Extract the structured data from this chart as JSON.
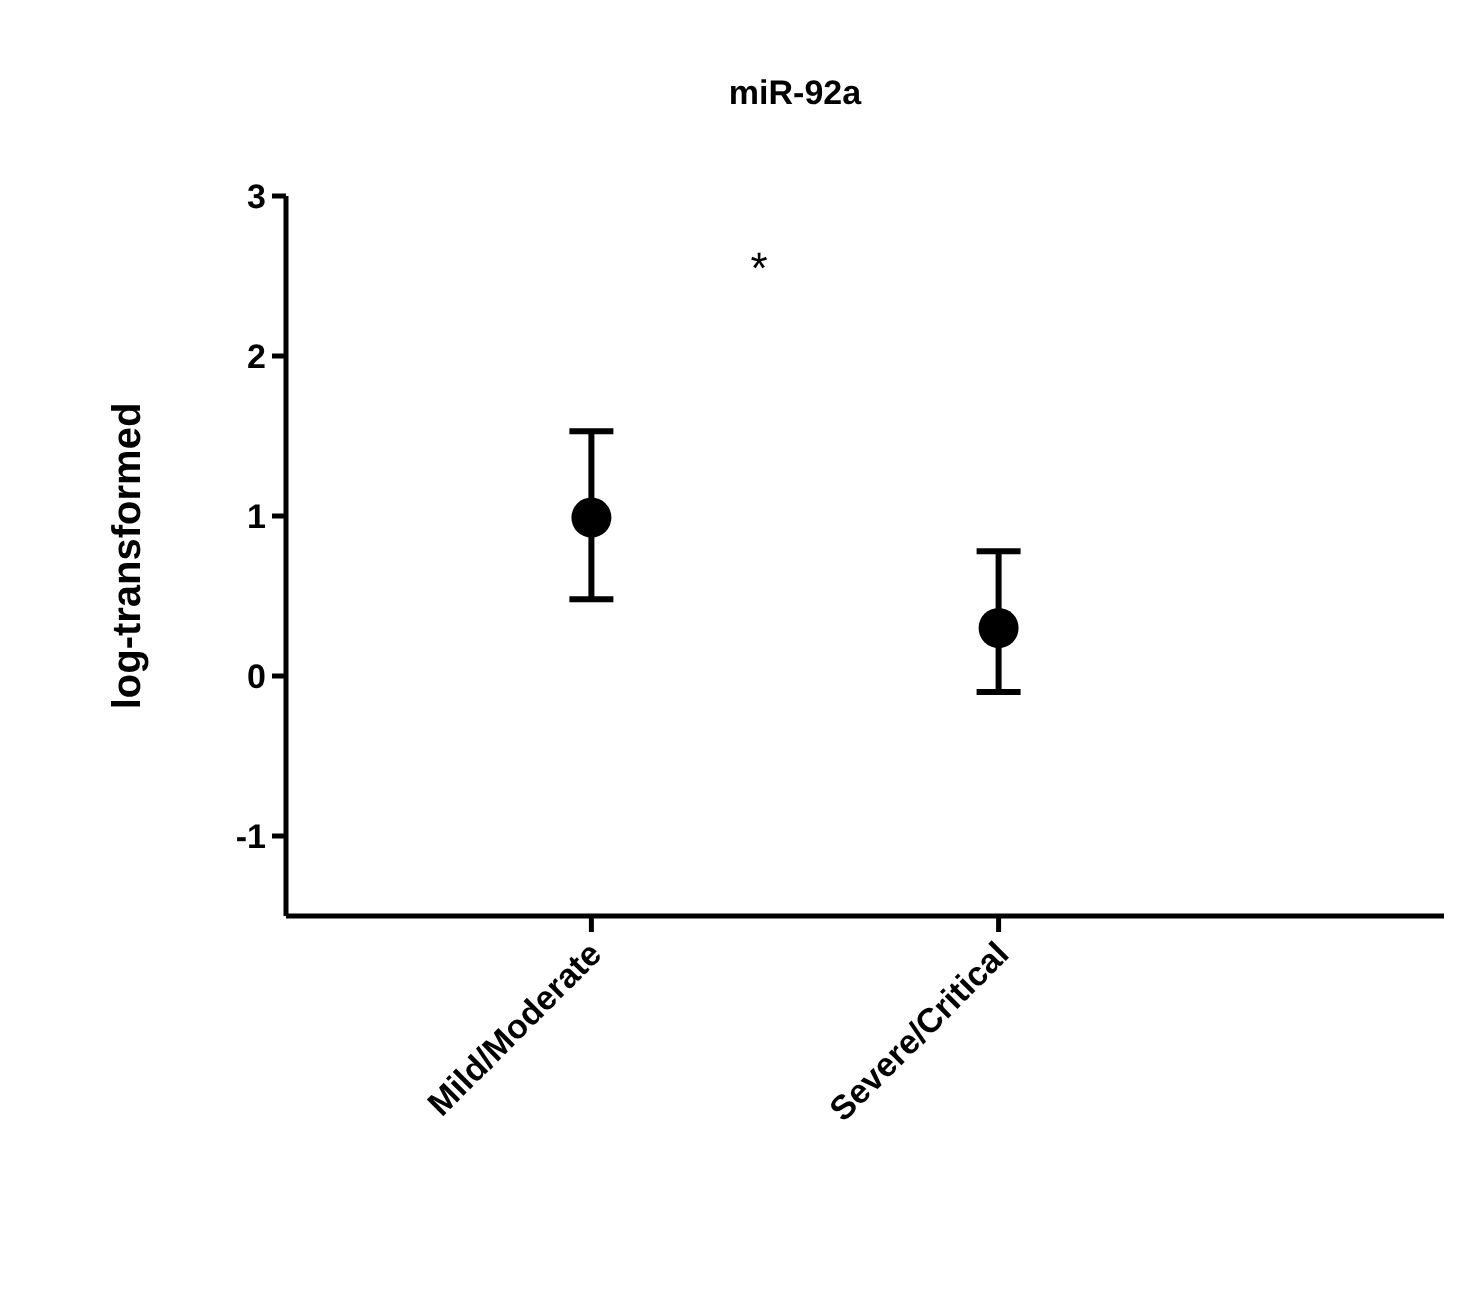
{
  "chart_data": {
    "type": "scatter",
    "title": "miR-92a",
    "ylabel": "log-transformed",
    "categories": [
      "Mild/Moderate",
      "Severe/Critical"
    ],
    "values": [
      0.99,
      0.3
    ],
    "errors": [
      [
        0.48,
        1.53
      ],
      [
        -0.1,
        0.78
      ]
    ],
    "color": "#000000",
    "marker": "circle",
    "ylim": [
      -1.5,
      3
    ],
    "yticks": [
      -1,
      0,
      1,
      2,
      3
    ],
    "annotations": [
      "*"
    ]
  }
}
